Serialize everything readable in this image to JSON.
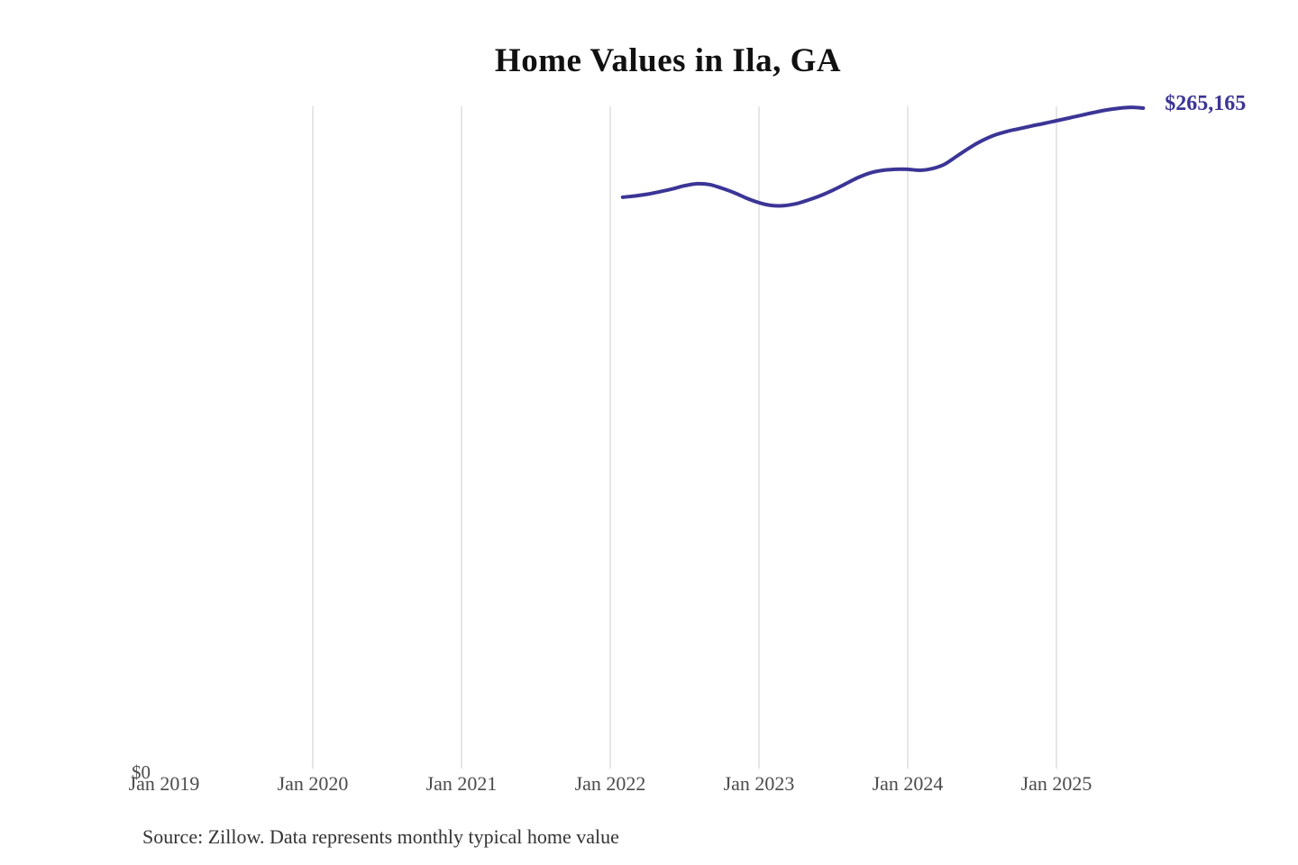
{
  "title": "Home Values in Ila, GA",
  "source_note": "Source: Zillow. Data represents monthly typical home value",
  "colors": {
    "line": "#3b3596",
    "end_label": "#3b3596",
    "gridline": "#cccccc",
    "axis_text": "#4b4b4b",
    "title_text": "#111111",
    "source_text": "#333333",
    "background": "#ffffff"
  },
  "chart_data": {
    "type": "line",
    "title": "Home Values in Ila, GA",
    "xlabel": "",
    "ylabel": "",
    "grid": "vertical-only",
    "legend": "none",
    "ylim": [
      0,
      266000
    ],
    "x_axis": {
      "ticks": [
        {
          "label": "Jan 2019",
          "gridline": false
        },
        {
          "label": "Jan 2020",
          "gridline": true
        },
        {
          "label": "Jan 2021",
          "gridline": true
        },
        {
          "label": "Jan 2022",
          "gridline": true
        },
        {
          "label": "Jan 2023",
          "gridline": true
        },
        {
          "label": "Jan 2024",
          "gridline": true
        },
        {
          "label": "Jan 2025",
          "gridline": true
        }
      ]
    },
    "y_axis": {
      "tick_labels": [
        "$0"
      ],
      "min": 0
    },
    "end_value_label": "$265,165",
    "end_value": 265165,
    "series": [
      {
        "name": "Monthly typical home value",
        "x": [
          "Feb 2022",
          "Mar 2022",
          "Apr 2022",
          "May 2022",
          "Jun 2022",
          "Jul 2022",
          "Aug 2022",
          "Sep 2022",
          "Oct 2022",
          "Nov 2022",
          "Dec 2022",
          "Jan 2023",
          "Feb 2023",
          "Mar 2023",
          "Apr 2023",
          "May 2023",
          "Jun 2023",
          "Jul 2023",
          "Aug 2023",
          "Sep 2023",
          "Oct 2023",
          "Nov 2023",
          "Dec 2023",
          "Jan 2024",
          "Feb 2024",
          "Mar 2024",
          "Apr 2024",
          "May 2024",
          "Jun 2024",
          "Jul 2024",
          "Aug 2024",
          "Sep 2024",
          "Oct 2024",
          "Nov 2024",
          "Dec 2024",
          "Jan 2025",
          "Feb 2025",
          "Mar 2025",
          "Apr 2025",
          "May 2025",
          "Jun 2025",
          "Jul 2025",
          "Aug 2025"
        ],
        "values": [
          229400,
          229900,
          230600,
          231600,
          232700,
          234000,
          234800,
          234500,
          233000,
          231200,
          229000,
          227200,
          226100,
          226000,
          226800,
          228300,
          230100,
          232300,
          234800,
          237300,
          239200,
          240200,
          240600,
          240600,
          240200,
          240900,
          242700,
          246000,
          249300,
          252100,
          254300,
          255800,
          256900,
          258000,
          259000,
          260100,
          261200,
          262300,
          263400,
          264400,
          265100,
          265500,
          265165
        ]
      }
    ]
  }
}
